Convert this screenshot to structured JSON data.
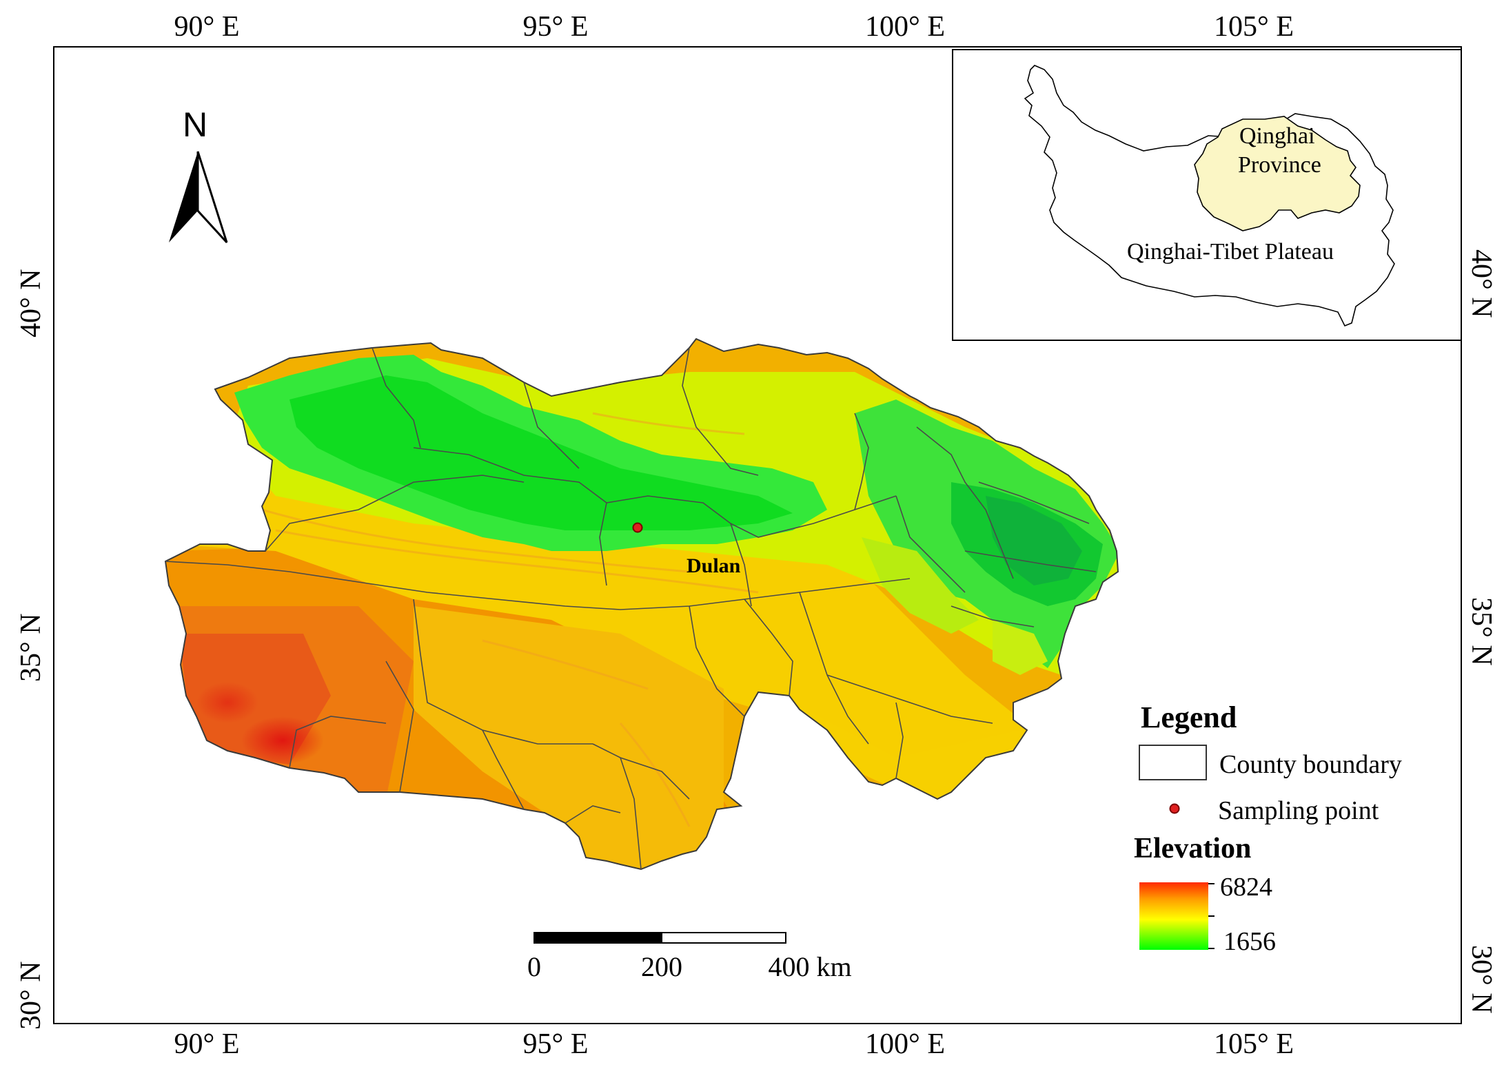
{
  "map": {
    "x_ticks": [
      "90° E",
      "95° E",
      "100° E",
      "105° E"
    ],
    "y_ticks": [
      "40° N",
      "35° N",
      "30° N"
    ]
  },
  "north_arrow": {
    "label": "N",
    "icon": "north-arrow-icon"
  },
  "place_label": "Dulan",
  "inset": {
    "province_label_line1": "Qinghai",
    "province_label_line2": "Province",
    "plateau_label": "Qinghai-Tibet Plateau",
    "province_fill": "#fbf6c5"
  },
  "legend": {
    "title": "Legend",
    "county_boundary": "County boundary",
    "sampling_point": "Sampling point",
    "elevation_title": "Elevation",
    "elevation_max": "6824",
    "elevation_min": "1656",
    "ramp_colors": [
      "#ff2a00",
      "#ff9e00",
      "#ffff00",
      "#00ff00"
    ]
  },
  "scale_bar": {
    "labels": [
      "0",
      "200",
      "400 km"
    ]
  },
  "colors": {
    "sampling_point": "#e02020",
    "high": "#e83a1a",
    "mid": "#f2c400",
    "low": "#2fe02a"
  }
}
